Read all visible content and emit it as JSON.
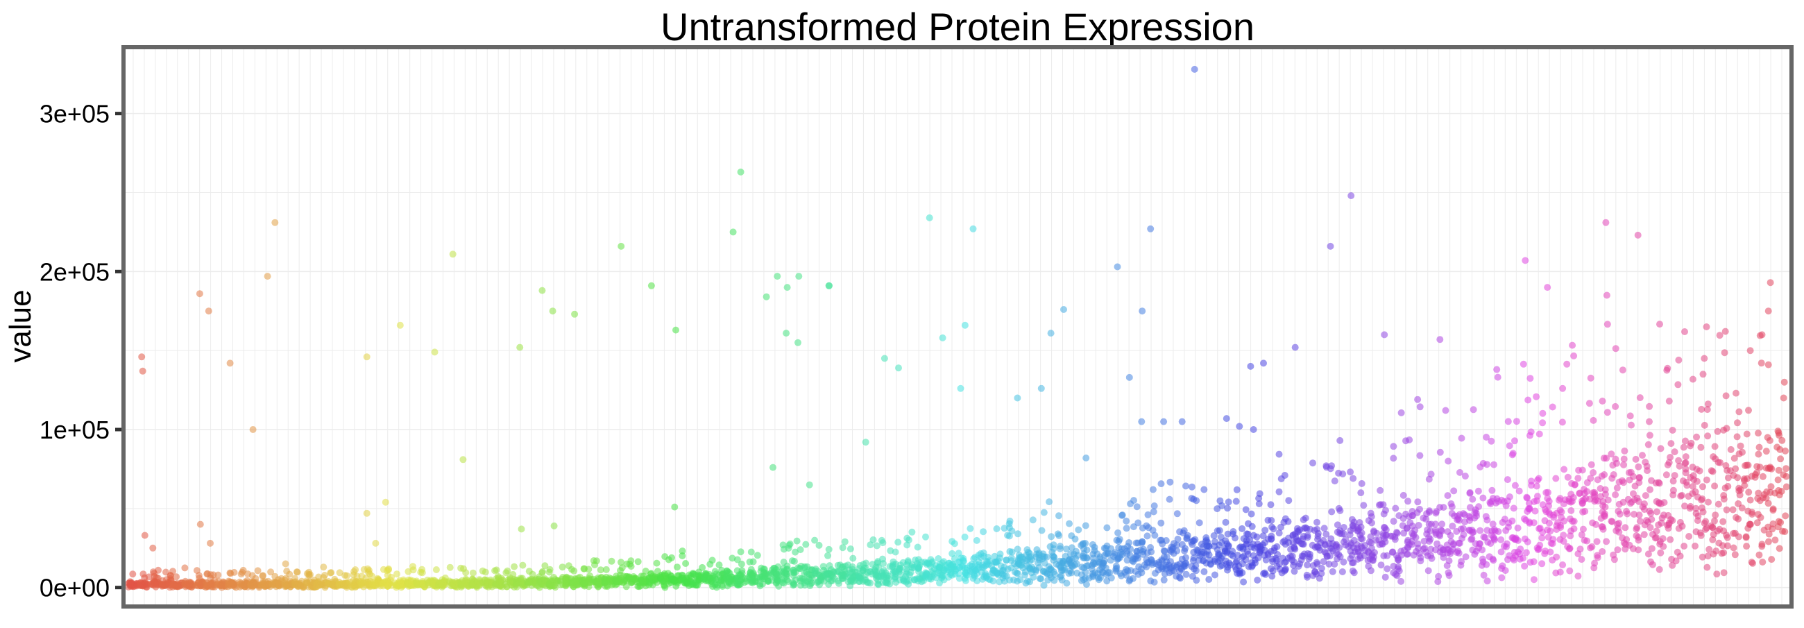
{
  "chart_data": {
    "type": "scatter",
    "title": "Untransformed Protein Expression",
    "xlabel": "",
    "ylabel": "value",
    "ylim": [
      -12000,
      342000
    ],
    "grid": true,
    "legend": "none",
    "y_ticks": [
      {
        "value": 0,
        "label": "0e+00"
      },
      {
        "value": 100000,
        "label": "1e+05"
      },
      {
        "value": 200000,
        "label": "2e+05"
      },
      {
        "value": 300000,
        "label": "3e+05"
      }
    ],
    "panel_border_color": "#666666",
    "grid_color": "#ececec",
    "n_samples": 150,
    "points_per_sample": 24,
    "series_trend": {
      "base_start": 2000,
      "base_end": 65000,
      "spread_start": 2500,
      "spread_end": 35000
    },
    "outliers": [
      [
        1,
        146000
      ],
      [
        1,
        137000
      ],
      [
        1,
        33000
      ],
      [
        3,
        25000
      ],
      [
        4,
        5000
      ],
      [
        7,
        186000
      ],
      [
        7,
        40000
      ],
      [
        8,
        28000
      ],
      [
        9,
        175000
      ],
      [
        11,
        142000
      ],
      [
        13,
        100000
      ],
      [
        15,
        197000
      ],
      [
        16,
        231000
      ],
      [
        17,
        15000
      ],
      [
        25,
        146000
      ],
      [
        26,
        47000
      ],
      [
        27,
        28000
      ],
      [
        28,
        54000
      ],
      [
        29,
        166000
      ],
      [
        33,
        149000
      ],
      [
        35,
        211000
      ],
      [
        37,
        81000
      ],
      [
        42,
        37000
      ],
      [
        43,
        152000
      ],
      [
        45,
        188000
      ],
      [
        46,
        175000
      ],
      [
        46,
        39000
      ],
      [
        49,
        173000
      ],
      [
        54,
        216000
      ],
      [
        57,
        191000
      ],
      [
        59,
        163000
      ],
      [
        60,
        51000
      ],
      [
        65,
        225000
      ],
      [
        67,
        263000
      ],
      [
        69,
        184000
      ],
      [
        70,
        197000
      ],
      [
        71,
        76000
      ],
      [
        72,
        190000
      ],
      [
        72,
        161000
      ],
      [
        73,
        197000
      ],
      [
        73,
        155000
      ],
      [
        74,
        65000
      ],
      [
        76,
        191000
      ],
      [
        77,
        191000
      ],
      [
        80,
        92000
      ],
      [
        83,
        145000
      ],
      [
        84,
        139000
      ],
      [
        88,
        234000
      ],
      [
        89,
        158000
      ],
      [
        91,
        166000
      ],
      [
        91,
        126000
      ],
      [
        92,
        227000
      ],
      [
        97,
        120000
      ],
      [
        100,
        126000
      ],
      [
        101,
        161000
      ],
      [
        102,
        176000
      ],
      [
        104,
        82000
      ],
      [
        108,
        203000
      ],
      [
        109,
        133000
      ],
      [
        110,
        105000
      ],
      [
        111,
        175000
      ],
      [
        112,
        227000
      ],
      [
        113,
        105000
      ],
      [
        115,
        105000
      ],
      [
        117,
        328000
      ],
      [
        118,
        62000
      ],
      [
        120,
        107000
      ],
      [
        121,
        102000
      ],
      [
        123,
        140000
      ],
      [
        123,
        100000
      ],
      [
        124,
        142000
      ],
      [
        126,
        71000
      ],
      [
        128,
        152000
      ],
      [
        131,
        216000
      ],
      [
        132,
        93000
      ],
      [
        134,
        248000
      ],
      [
        135,
        60000
      ],
      [
        137,
        160000
      ],
      [
        141,
        119000
      ],
      [
        143,
        157000
      ],
      [
        145,
        80000
      ],
      [
        150,
        138000
      ],
      [
        153,
        207000
      ],
      [
        156,
        190000
      ],
      [
        157,
        126000
      ],
      [
        161,
        231000
      ],
      [
        162,
        185000
      ],
      [
        162,
        118000
      ],
      [
        165,
        223000
      ],
      [
        166,
        105000
      ],
      [
        169,
        118000
      ],
      [
        172,
        145000
      ],
      [
        172,
        165000
      ],
      [
        173,
        135000
      ],
      [
        176,
        123000
      ],
      [
        177,
        150000
      ],
      [
        179,
        160000
      ],
      [
        180,
        193000
      ],
      [
        180,
        175000
      ],
      [
        181,
        130000
      ],
      [
        181,
        120000
      ]
    ]
  }
}
